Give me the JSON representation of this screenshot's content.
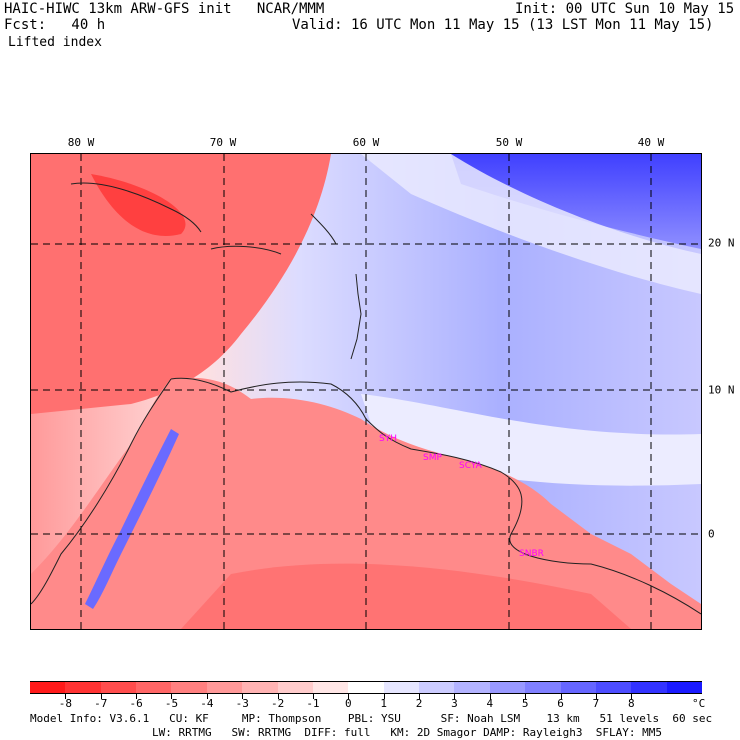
{
  "header": {
    "title": "HAIC-HIWC 13km ARW-GFS init   NCAR/MMM",
    "init": "Init: 00 UTC Sun 10 May 15",
    "fcst": "Fcst:   40 h",
    "valid": "Valid: 16 UTC Mon 11 May 15 (13 LST Mon 11 May 15)",
    "field": "Lifted index"
  },
  "map": {
    "lon_labels": [
      "80 W",
      "70 W",
      "60 W",
      "50 W",
      "40 W"
    ],
    "lat_labels": [
      "20 N",
      "10 N",
      "0"
    ],
    "stations": [
      "SYH",
      "SMP",
      "SCYA",
      "SNBR"
    ],
    "station_color": "#ff00ff"
  },
  "colorbar": {
    "labels": [
      "-8",
      "-7",
      "-6",
      "-5",
      "-4",
      "-3",
      "-2",
      "-1",
      "0",
      "1",
      "2",
      "3",
      "4",
      "5",
      "6",
      "7",
      "8"
    ],
    "unit": "°C",
    "colors": [
      "#ff1a1a",
      "#ff3333",
      "#ff4d4d",
      "#ff6666",
      "#ff8080",
      "#ff9999",
      "#ffb3b3",
      "#ffcccc",
      "#ffe6e6",
      "#ffffff",
      "#e6e6ff",
      "#ccccff",
      "#b3b3ff",
      "#9999ff",
      "#8080ff",
      "#6666ff",
      "#4d4dff",
      "#3333ff",
      "#1a1aff"
    ]
  },
  "footer": {
    "line1": "Model Info: V3.6.1   CU: KF     MP: Thompson    PBL: YSU      SF: Noah LSM    13 km   51 levels  60 sec",
    "line2": "LW: RRTMG   SW: RRTMG  DIFF: full   KM: 2D Smagor DAMP: Rayleigh3  SFLAY: MM5"
  }
}
